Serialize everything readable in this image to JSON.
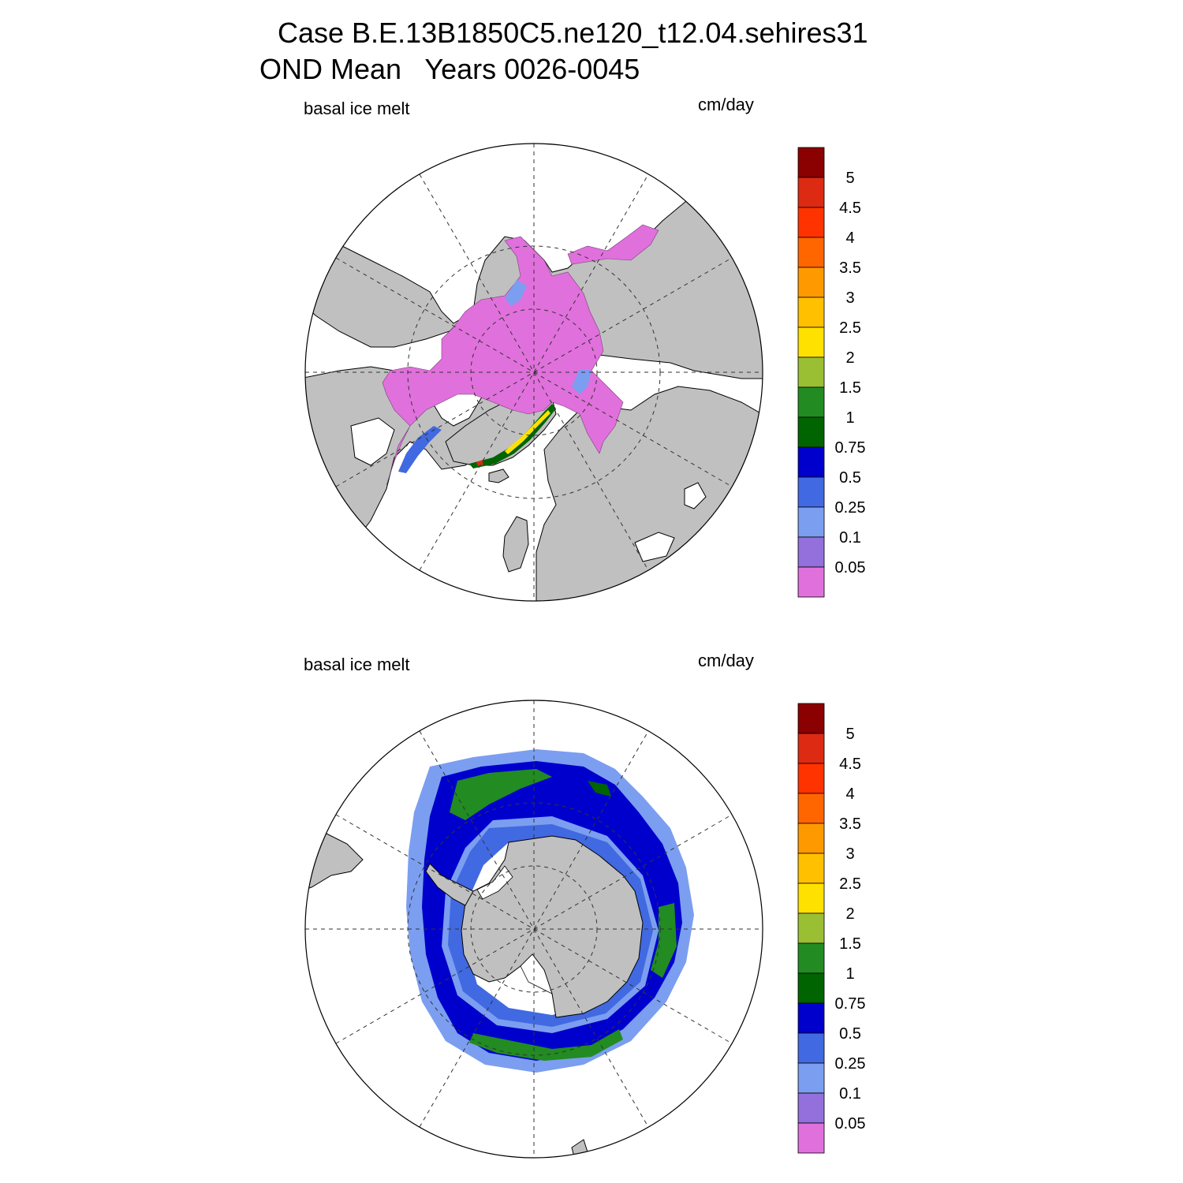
{
  "title": {
    "line1": "Case B.E.13B1850C5.ne120_t12.04.sehires31",
    "line2": "OND Mean   Years 0026-0045"
  },
  "panels": [
    {
      "id": "north",
      "hemisphere": "Arctic",
      "left_label": "basal ice melt",
      "units": "cm/day"
    },
    {
      "id": "south",
      "hemisphere": "Antarctic",
      "left_label": "basal ice melt",
      "units": "cm/day"
    }
  ],
  "colorbar": {
    "labels": [
      "5",
      "4.5",
      "4",
      "3.5",
      "3",
      "2.5",
      "2",
      "1.5",
      "1",
      "0.75",
      "0.5",
      "0.25",
      "0.1",
      "0.05"
    ],
    "colors": [
      "#8b0000",
      "#dc2a13",
      "#ff3300",
      "#ff6600",
      "#ff9900",
      "#ffc000",
      "#ffe100",
      "#9bbf33",
      "#228b22",
      "#006400",
      "#0000cd",
      "#4169e1",
      "#7b9ef0",
      "#9370db",
      "#e070dc"
    ]
  },
  "map_colors": {
    "land": "#c0c0c0",
    "ocean": "#ffffff",
    "outline": "#000000"
  }
}
